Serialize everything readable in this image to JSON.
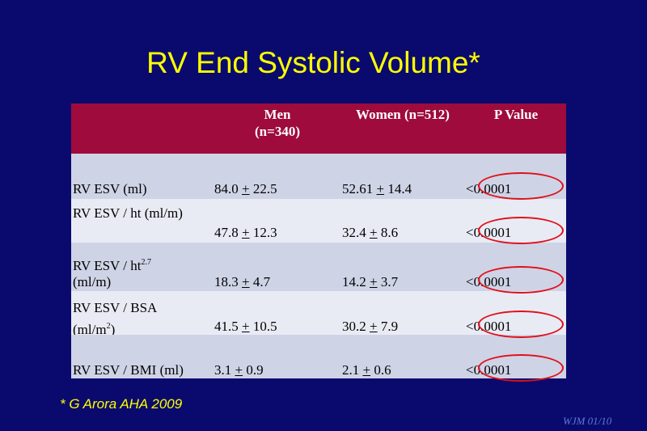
{
  "slide": {
    "title": "RV End Systolic Volume*",
    "footnote": "* G Arora AHA 2009",
    "stamp": "WJM 01/10"
  },
  "table": {
    "headers": {
      "men_line1": "Men",
      "men_line2": "(n=340)",
      "women": "Women (n=512)",
      "p": "P Value"
    },
    "rows": [
      {
        "label1": "RV ESV (ml)",
        "label2": "",
        "men": "84.0",
        "men_sd": "22.5",
        "women": "52.61",
        "women_sd": "14.4",
        "p": "<0.0001"
      },
      {
        "label1": "RV ESV / ht  (ml/m)",
        "label2": "",
        "men": "47.8",
        "men_sd": "12.3",
        "women": "32.4",
        "women_sd": "8.6",
        "p": "<0.0001"
      },
      {
        "label1": "RV ESV / ht",
        "label1_sup": "2.7",
        "label2": "(ml/m)",
        "men": "18.3",
        "men_sd": "4.7",
        "women": "14.2",
        "women_sd": "3.7",
        "p": "<0.0001"
      },
      {
        "label1": "RV ESV / BSA",
        "label2": "(ml/m",
        "label2_sup": "2",
        "label2_end": ")",
        "men": "41.5",
        "men_sd": "10.5",
        "women": "30.2",
        "women_sd": "7.9",
        "p": "<0.0001"
      },
      {
        "label1": "RV ESV / BMI (ml)",
        "label2": "",
        "men": "3.1",
        "men_sd": "0.9",
        "women": "2.1",
        "women_sd": "0.6",
        "p": "<0.0001"
      }
    ],
    "pm_symbol": "+",
    "highlight_color": "#e0101a"
  }
}
